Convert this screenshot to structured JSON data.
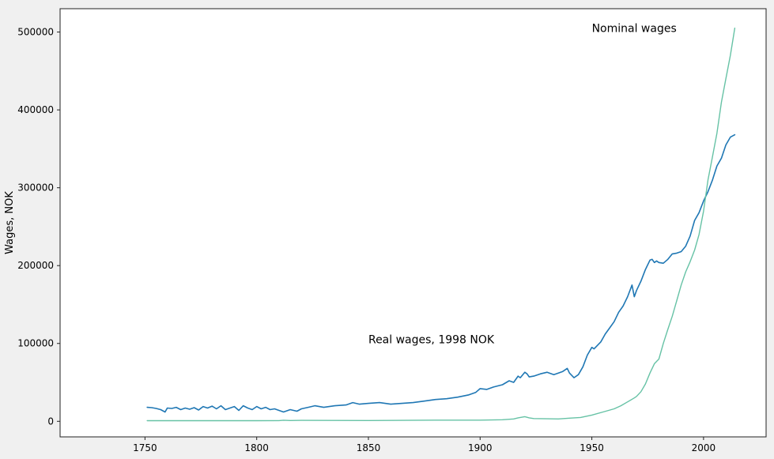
{
  "chart_data": {
    "type": "line",
    "title": "",
    "xlabel": "",
    "ylabel": "Wages, NOK",
    "xlim": [
      1712,
      2028
    ],
    "ylim": [
      -20000,
      530000
    ],
    "xticks": [
      1750,
      1800,
      1850,
      1900,
      1950,
      2000
    ],
    "yticks": [
      0,
      100000,
      200000,
      300000,
      400000,
      500000
    ],
    "grid": false,
    "annotations": [
      {
        "text": "Nominal wages",
        "x": 1950,
        "y": 500000
      },
      {
        "text": "Real wages, 1998 NOK",
        "x": 1850,
        "y": 100000
      }
    ],
    "series": [
      {
        "color": "#1f77b4",
        "x": [
          1751,
          1753,
          1755,
          1757,
          1759,
          1760,
          1762,
          1764,
          1766,
          1768,
          1770,
          1772,
          1774,
          1776,
          1778,
          1780,
          1782,
          1784,
          1786,
          1788,
          1790,
          1792,
          1794,
          1796,
          1798,
          1800,
          1802,
          1804,
          1806,
          1808,
          1810,
          1812,
          1815,
          1818,
          1820,
          1823,
          1826,
          1830,
          1835,
          1840,
          1843,
          1846,
          1850,
          1855,
          1860,
          1865,
          1870,
          1875,
          1880,
          1885,
          1890,
          1895,
          1898,
          1900,
          1903,
          1906,
          1910,
          1913,
          1915,
          1917,
          1918,
          1920,
          1921,
          1922,
          1924,
          1927,
          1930,
          1933,
          1935,
          1937,
          1939,
          1940,
          1942,
          1944,
          1946,
          1948,
          1950,
          1951,
          1952,
          1954,
          1956,
          1958,
          1960,
          1962,
          1964,
          1966,
          1968,
          1969,
          1970,
          1972,
          1974,
          1976,
          1977,
          1978,
          1979,
          1980,
          1982,
          1984,
          1986,
          1988,
          1990,
          1992,
          1994,
          1996,
          1998,
          2000,
          2002,
          2004,
          2006,
          2008,
          2010,
          2012,
          2014
        ],
        "y": [
          18000,
          17500,
          16500,
          15000,
          12000,
          17000,
          16500,
          18000,
          15000,
          17000,
          15500,
          17500,
          14500,
          19000,
          17000,
          19500,
          16000,
          20000,
          15000,
          17000,
          19000,
          14000,
          20000,
          17000,
          15000,
          19000,
          16000,
          18000,
          15000,
          16000,
          14000,
          12000,
          15000,
          13000,
          16000,
          18000,
          20000,
          18000,
          20000,
          21000,
          24000,
          22000,
          23000,
          24000,
          22000,
          23000,
          24000,
          26000,
          28000,
          29000,
          31000,
          34000,
          37000,
          42000,
          41000,
          44000,
          47000,
          52000,
          50000,
          58000,
          56000,
          63000,
          61000,
          57000,
          58000,
          61000,
          63000,
          60000,
          62000,
          64000,
          68000,
          62000,
          56000,
          60000,
          70000,
          85000,
          95000,
          93000,
          96000,
          102000,
          112000,
          120000,
          128000,
          140000,
          148000,
          160000,
          175000,
          160000,
          168000,
          180000,
          195000,
          207000,
          208000,
          204000,
          206000,
          204000,
          203000,
          208000,
          215000,
          216000,
          218000,
          225000,
          238000,
          258000,
          268000,
          283000,
          295000,
          310000,
          328000,
          338000,
          355000,
          365000,
          368000
        ],
        "width": 1.6
      },
      {
        "color": "#66c2a5",
        "x": [
          1751,
          1800,
          1810,
          1812,
          1815,
          1820,
          1850,
          1880,
          1900,
          1910,
          1915,
          1917,
          1920,
          1922,
          1924,
          1930,
          1935,
          1940,
          1945,
          1950,
          1955,
          1960,
          1963,
          1966,
          1969,
          1970,
          1972,
          1974,
          1976,
          1978,
          1980,
          1982,
          1984,
          1986,
          1988,
          1990,
          1992,
          1994,
          1996,
          1998,
          2000,
          2002,
          2004,
          2006,
          2008,
          2010,
          2012,
          2014
        ],
        "y": [
          800,
          800,
          900,
          1400,
          1000,
          1200,
          1000,
          1500,
          1500,
          2000,
          3000,
          4500,
          6000,
          4500,
          3500,
          3200,
          3000,
          4000,
          5000,
          8000,
          12000,
          16000,
          20000,
          25000,
          30000,
          32000,
          38000,
          48000,
          62000,
          74000,
          80000,
          100000,
          118000,
          135000,
          155000,
          175000,
          192000,
          205000,
          220000,
          240000,
          270000,
          310000,
          340000,
          370000,
          410000,
          440000,
          470000,
          505000
        ],
        "width": 1.4
      }
    ]
  }
}
